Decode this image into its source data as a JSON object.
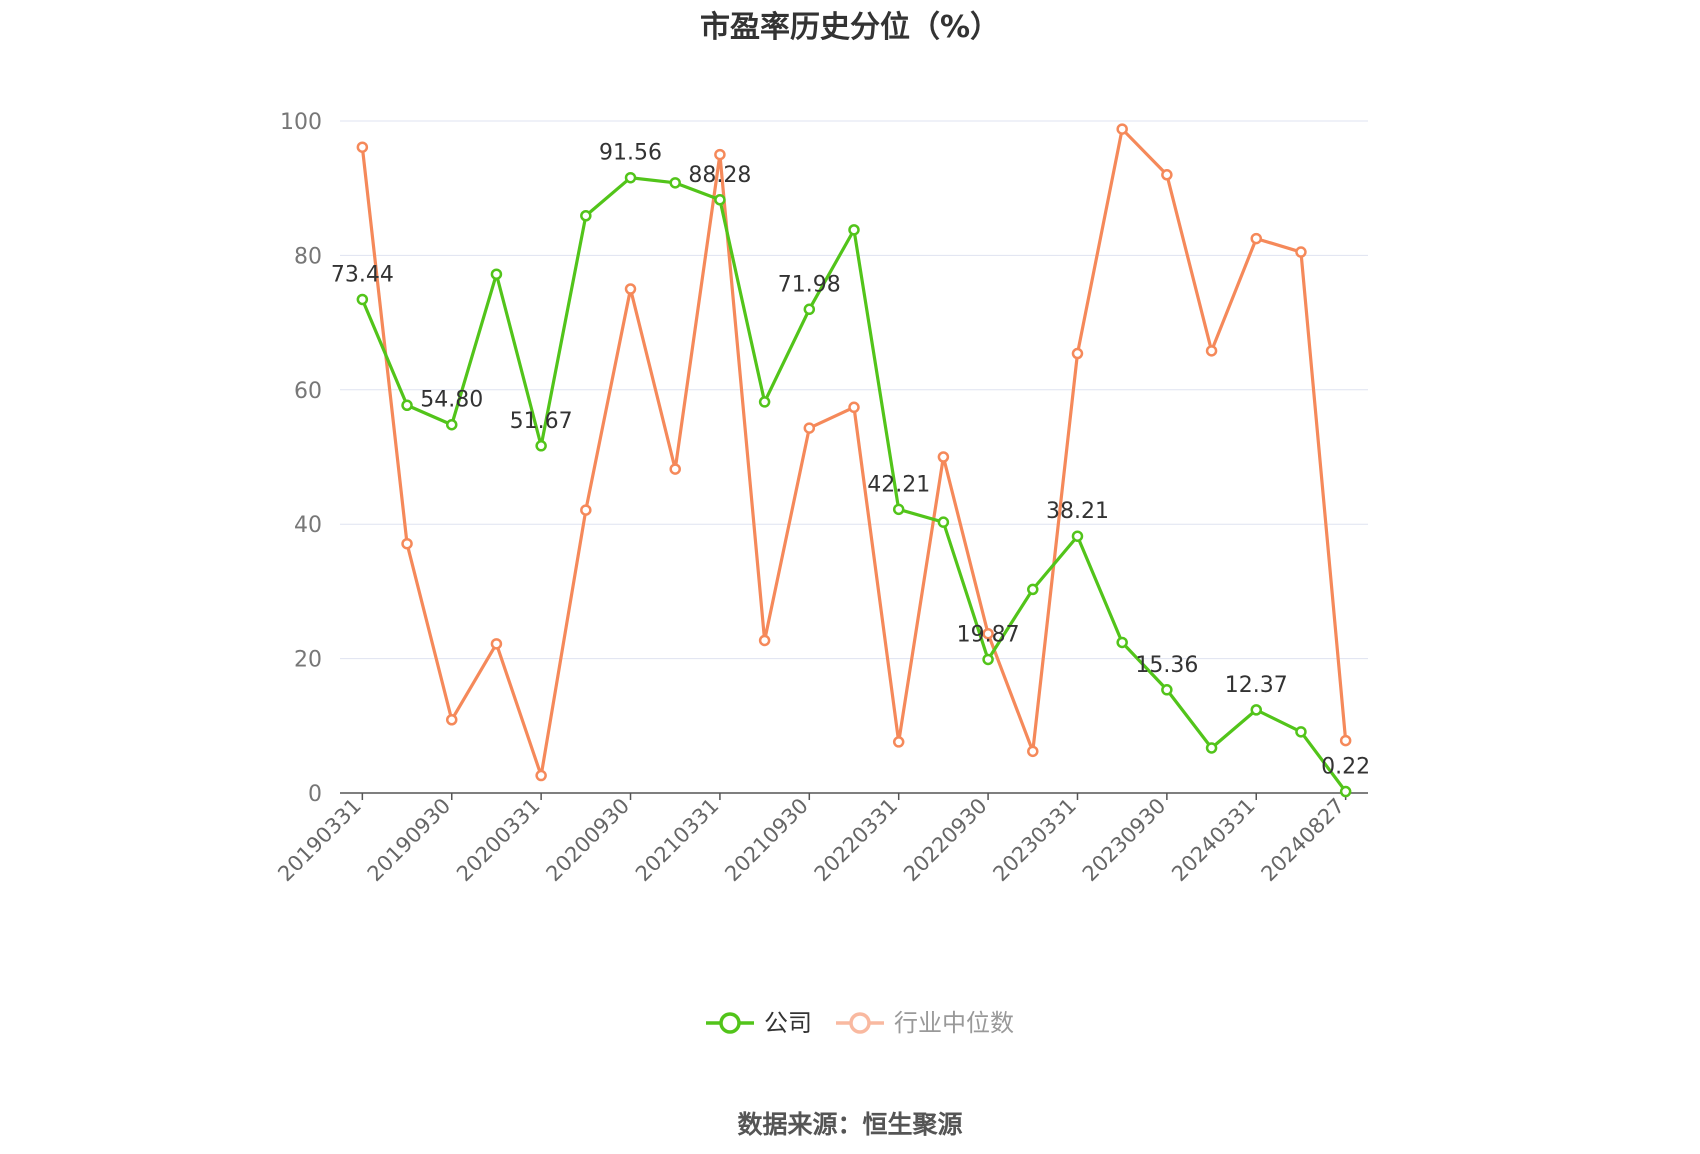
{
  "chart_data": {
    "type": "line",
    "title": "市盈率历史分位（%）",
    "source": "数据来源：恒生聚源",
    "ylim": [
      0,
      100
    ],
    "yticks": [
      0,
      20,
      40,
      60,
      80,
      100
    ],
    "grid": true,
    "legend_position": "bottom",
    "xtick_labels": [
      "20190331",
      "20190930",
      "20200331",
      "20200930",
      "20210331",
      "20210930",
      "20220331",
      "20220930",
      "20230331",
      "20230930",
      "20240331",
      "20240827"
    ],
    "x": [
      "20190331",
      "20190630",
      "20190930",
      "20191231",
      "20200331",
      "20200630",
      "20200930",
      "20201231",
      "20210331",
      "20210630",
      "20210930",
      "20211231",
      "20220331",
      "20220630",
      "20220930",
      "20221231",
      "20230331",
      "20230630",
      "20230930",
      "20231231",
      "20240331",
      "20240630",
      "20240827"
    ],
    "series": [
      {
        "name": "公司",
        "color": "#52c41a",
        "values": [
          73.44,
          57.7,
          54.8,
          77.2,
          51.67,
          85.9,
          91.56,
          90.8,
          88.28,
          58.2,
          71.98,
          83.8,
          42.21,
          40.3,
          19.87,
          30.3,
          38.21,
          22.4,
          15.36,
          6.7,
          12.37,
          9.1,
          0.22
        ],
        "labels": {
          "0": "73.44",
          "2": "54.80",
          "4": "51.67",
          "6": "91.56",
          "8": "88.28",
          "10": "71.98",
          "12": "42.21",
          "14": "19.87",
          "16": "38.21",
          "18": "15.36",
          "20": "12.37",
          "22": "0.22"
        }
      },
      {
        "name": "行业中位数",
        "color": "#f5895a",
        "values": [
          96.1,
          37.1,
          10.9,
          22.2,
          2.6,
          42.1,
          75.0,
          48.2,
          95.0,
          22.7,
          54.3,
          57.4,
          7.6,
          50.0,
          23.7,
          6.2,
          65.4,
          98.8,
          92.0,
          65.8,
          82.5,
          80.5,
          7.8
        ]
      }
    ]
  }
}
